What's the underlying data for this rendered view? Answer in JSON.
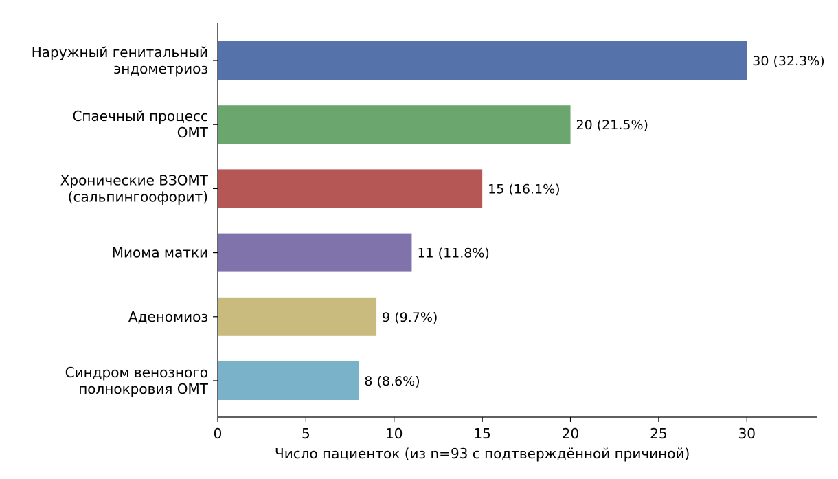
{
  "chart_data": {
    "type": "bar",
    "orientation": "horizontal",
    "categories": [
      [
        "Наружный генитальный",
        "эндометриоз"
      ],
      [
        "Спаечный процесс",
        "ОМТ"
      ],
      [
        "Хронические ВЗОМТ",
        "(сальпингоофорит)"
      ],
      [
        "Миома матки"
      ],
      [
        "Аденомиоз"
      ],
      [
        "Синдром венозного",
        "полнокровия ОМТ"
      ]
    ],
    "values": [
      30,
      20,
      15,
      11,
      9,
      8
    ],
    "value_labels": [
      "30 (32.3%)",
      "20 (21.5%)",
      "15 (16.1%)",
      "11 (11.8%)",
      "9 (9.7%)",
      "8 (8.6%)"
    ],
    "colors": [
      "#5572aa",
      "#6ca66f",
      "#b55755",
      "#8073ac",
      "#c9bb7e",
      "#79b2c9"
    ],
    "xlabel": "Число пациенток (из n=93 с подтверждённой причиной)",
    "ylabel": "",
    "title": "",
    "xlim": [
      0,
      34
    ],
    "xticks": [
      0,
      5,
      10,
      15,
      20,
      25,
      30
    ],
    "grid": false,
    "legend": "none"
  }
}
